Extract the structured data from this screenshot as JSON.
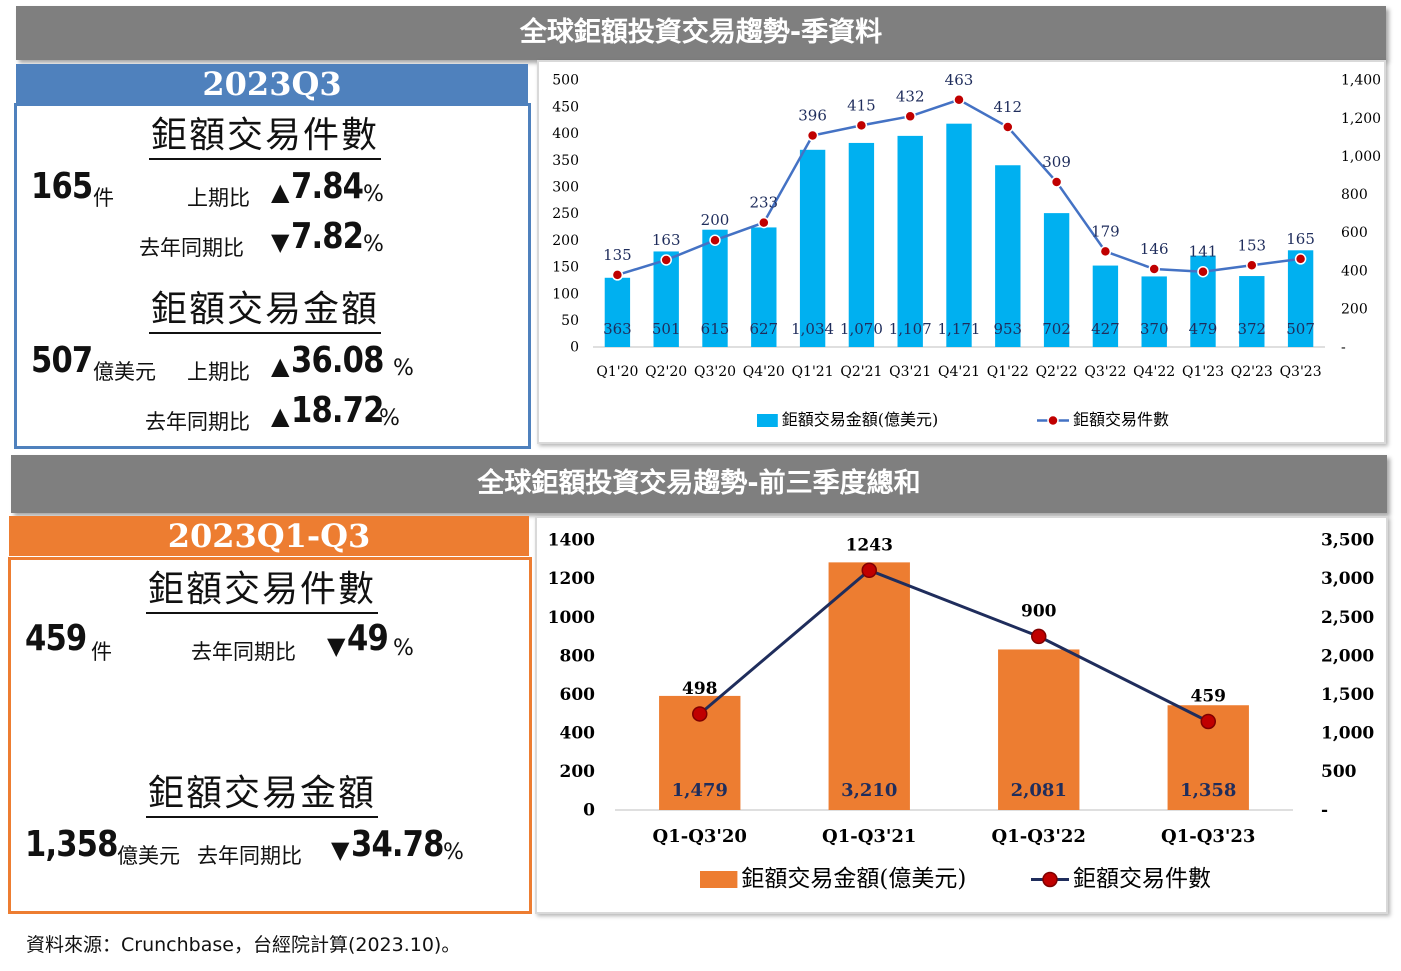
{
  "top": {
    "banner": "全球鉅額投資交易趨勢-季資料",
    "tag": "2023Q3",
    "count_title": "鉅額交易件數",
    "count_value": "165",
    "count_unit": "件",
    "count_qoq_label": "上期比",
    "count_qoq_arrow": "▲",
    "count_qoq_value": "7.84",
    "count_yoy_label": "去年同期比",
    "count_yoy_arrow": "▼",
    "count_yoy_value": "7.82",
    "amount_title": "鉅額交易金額",
    "amount_value": "507",
    "amount_unit": "億美元",
    "amount_qoq_label": "上期比",
    "amount_qoq_arrow": "▲",
    "amount_qoq_value": "36.08",
    "amount_yoy_label": "去年同期比",
    "amount_yoy_arrow": "▲",
    "amount_yoy_value": "18.72",
    "percent": "%"
  },
  "bottom": {
    "banner": "全球鉅額投資交易趨勢-前三季度總和",
    "tag": "2023Q1-Q3",
    "count_title": "鉅額交易件數",
    "count_value": "459",
    "count_unit": "件",
    "count_yoy_label": "去年同期比",
    "count_yoy_arrow": "▼",
    "count_yoy_value": "49",
    "amount_title": "鉅額交易金額",
    "amount_value": "1,358",
    "amount_unit": "億美元",
    "amount_yoy_label": "去年同期比",
    "amount_yoy_arrow": "▼",
    "amount_yoy_value": "34.78",
    "percent": "%"
  },
  "source": "資料來源：Crunchbase，台經院計算(2023.10)。",
  "colors": {
    "banner": "#7f7f7f",
    "tag_top": "#4f81bd",
    "tag_bottom": "#ed7d31",
    "bar_top": "#00b0f0",
    "line_top": "#4472c4",
    "bar_bottom": "#ed7d31",
    "line_bottom": "#1f2d5c",
    "marker": "#c00000"
  },
  "chart_data": [
    {
      "type": "bar",
      "categories": [
        "Q1'20",
        "Q2'20",
        "Q3'20",
        "Q4'20",
        "Q1'21",
        "Q2'21",
        "Q3'21",
        "Q4'21",
        "Q1'22",
        "Q2'22",
        "Q3'22",
        "Q4'22",
        "Q1'23",
        "Q2'23",
        "Q3'23"
      ],
      "series": [
        {
          "name": "鉅額交易金額(億美元)",
          "kind": "bar",
          "axis": "right",
          "values": [
            363,
            501,
            615,
            627,
            1034,
            1070,
            1107,
            1171,
            953,
            702,
            427,
            370,
            479,
            372,
            507
          ],
          "labels": [
            "363",
            "501",
            "615",
            "627",
            "1,034",
            "1,070",
            "1,107",
            "1,171",
            "953",
            "702",
            "427",
            "370",
            "479",
            "372",
            "507"
          ]
        },
        {
          "name": "鉅額交易件數",
          "kind": "line",
          "axis": "left",
          "values": [
            135,
            163,
            200,
            233,
            396,
            415,
            432,
            463,
            412,
            309,
            179,
            146,
            141,
            153,
            165
          ]
        }
      ],
      "yleft": {
        "range": [
          0,
          500
        ],
        "ticks": [
          "0",
          "50",
          "100",
          "150",
          "200",
          "250",
          "300",
          "350",
          "400",
          "450",
          "500"
        ]
      },
      "yright": {
        "range": [
          0,
          1400
        ],
        "ticks": [
          "-",
          "200",
          "400",
          "600",
          "800",
          "1,000",
          "1,200",
          "1,400"
        ]
      },
      "legend": "bottom"
    },
    {
      "type": "bar",
      "categories": [
        "Q1-Q3'20",
        "Q1-Q3'21",
        "Q1-Q3'22",
        "Q1-Q3'23"
      ],
      "series": [
        {
          "name": "鉅額交易金額(億美元)",
          "kind": "bar",
          "axis": "right",
          "values": [
            1479,
            3210,
            2081,
            1358
          ],
          "labels": [
            "1,479",
            "3,210",
            "2,081",
            "1,358"
          ]
        },
        {
          "name": "鉅額交易件數",
          "kind": "line",
          "axis": "left",
          "values": [
            498,
            1243,
            900,
            459
          ]
        }
      ],
      "yleft": {
        "range": [
          0,
          1400
        ],
        "ticks": [
          "0",
          "200",
          "400",
          "600",
          "800",
          "1000",
          "1200",
          "1400"
        ]
      },
      "yright": {
        "range": [
          0,
          3500
        ],
        "ticks": [
          "-",
          "500",
          "1,000",
          "1,500",
          "2,000",
          "2,500",
          "3,000",
          "3,500"
        ]
      },
      "legend": "bottom"
    }
  ]
}
